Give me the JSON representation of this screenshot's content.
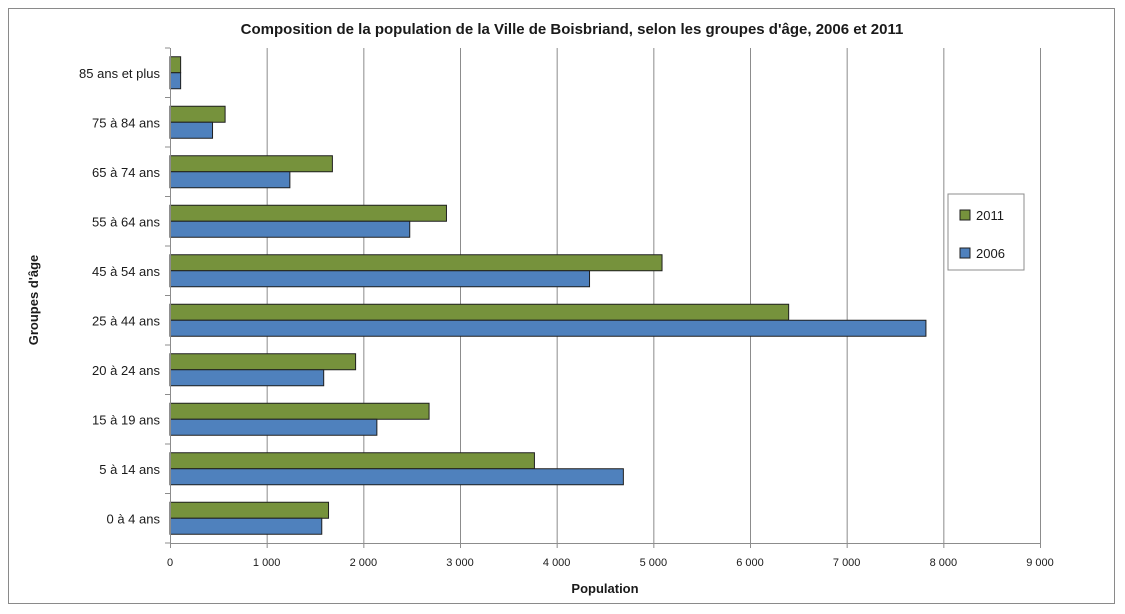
{
  "chart_data": {
    "type": "bar",
    "orientation": "horizontal",
    "title": "Composition de la population de la Ville de Boisbriand, selon les groupes d'âge, 2006 et 2011",
    "xlabel": "Population",
    "ylabel": "Groupes d'âge",
    "categories": [
      "0 à 4 ans",
      "5 à 14 ans",
      "15 à 19 ans",
      "20 à 24 ans",
      "25 à 44 ans",
      "45 à 54 ans",
      "55 à 64 ans",
      "65 à 74 ans",
      "75 à 84 ans",
      "85 ans et plus"
    ],
    "series": [
      {
        "name": "2011",
        "color": "#76923c",
        "values": [
          1640,
          3770,
          2680,
          1920,
          6400,
          5090,
          2860,
          1680,
          570,
          110
        ]
      },
      {
        "name": "2006",
        "color": "#4f81bd",
        "values": [
          1570,
          4690,
          2140,
          1590,
          7820,
          4340,
          2480,
          1240,
          440,
          110
        ]
      }
    ],
    "xlim": [
      0,
      9000
    ],
    "xticks": [
      0,
      1000,
      2000,
      3000,
      4000,
      5000,
      6000,
      7000,
      8000,
      9000
    ],
    "xtick_labels": [
      "0",
      "1 000",
      "2 000",
      "3 000",
      "4 000",
      "5 000",
      "6 000",
      "7 000",
      "8 000",
      "9 000"
    ],
    "grid": true,
    "legend": {
      "placement": "right",
      "entries": [
        "2011",
        "2006"
      ]
    }
  }
}
